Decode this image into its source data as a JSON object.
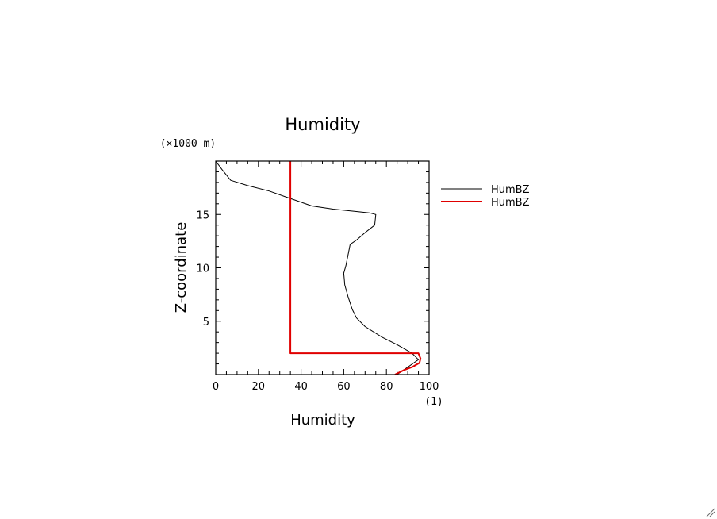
{
  "chart_data": {
    "type": "line",
    "title": "Humidity",
    "xlabel": "Humidity",
    "ylabel": "Z-coordinate",
    "x_unit": "(1)",
    "y_unit": "(×1000 m)",
    "xlim": [
      0,
      100
    ],
    "ylim": [
      0,
      20
    ],
    "x_ticks": [
      0,
      20,
      40,
      60,
      80,
      100
    ],
    "y_ticks": [
      5,
      10,
      15
    ],
    "grid": false,
    "legend_position": "right",
    "series": [
      {
        "name": "HumBZ",
        "color": "#000000",
        "x": [
          0,
          3,
          7,
          15,
          25,
          35,
          45,
          55,
          65,
          72,
          75,
          74.5,
          70,
          66,
          63,
          62,
          61,
          60,
          60.5,
          62,
          64,
          66,
          70,
          78,
          85,
          92,
          95,
          90,
          85
        ],
        "y": [
          20,
          19.2,
          18.2,
          17.7,
          17.2,
          16.5,
          15.8,
          15.5,
          15.3,
          15.15,
          15.0,
          14.0,
          13.3,
          12.6,
          12.2,
          11.2,
          10.2,
          9.5,
          8.4,
          7.3,
          6.1,
          5.3,
          4.5,
          3.5,
          2.8,
          2.0,
          1.4,
          0.7,
          0.0
        ]
      },
      {
        "name": "HumBZ",
        "color": "#e00000",
        "x": [
          35,
          35,
          95,
          96,
          95.5,
          92,
          88,
          84
        ],
        "y": [
          20,
          2.0,
          2.0,
          1.5,
          1.1,
          0.7,
          0.4,
          0.0
        ]
      }
    ]
  }
}
